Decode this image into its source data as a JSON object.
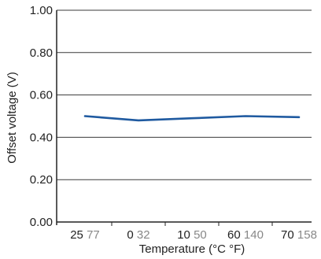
{
  "chart_data": {
    "type": "line",
    "title": "",
    "xlabel": "Temperature (°C °F)",
    "ylabel": "Offset voltage (V)",
    "ylim": [
      0,
      1.0
    ],
    "y_ticks": [
      "0.00",
      "0.20",
      "0.40",
      "0.60",
      "0.80",
      "1.00"
    ],
    "x_ticks": [
      {
        "c": "25",
        "f": "77"
      },
      {
        "c": "0",
        "f": "32"
      },
      {
        "c": "10",
        "f": "50"
      },
      {
        "c": "60",
        "f": "140"
      },
      {
        "c": "70",
        "f": "158"
      }
    ],
    "grid": true,
    "series": [
      {
        "color": "#1f5aa0",
        "x": [
          25,
          0,
          10,
          60,
          70
        ],
        "values": [
          0.5,
          0.48,
          0.49,
          0.5,
          0.495
        ]
      }
    ]
  }
}
